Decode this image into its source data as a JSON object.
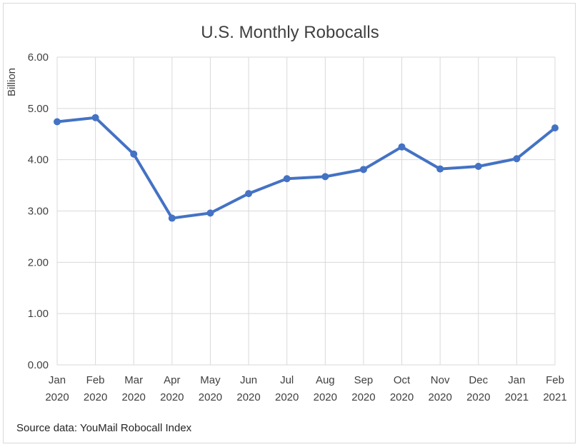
{
  "chart_data": {
    "type": "line",
    "title": "U.S. Monthly Robocalls",
    "ylabel": "Billion",
    "xlabel": "",
    "ylim": [
      0,
      6
    ],
    "yticks": [
      "0.00",
      "1.00",
      "2.00",
      "3.00",
      "4.00",
      "5.00",
      "6.00"
    ],
    "categories": [
      [
        "Jan",
        "2020"
      ],
      [
        "Feb",
        "2020"
      ],
      [
        "Mar",
        "2020"
      ],
      [
        "Apr",
        "2020"
      ],
      [
        "May",
        "2020"
      ],
      [
        "Jun",
        "2020"
      ],
      [
        "Jul",
        "2020"
      ],
      [
        "Aug",
        "2020"
      ],
      [
        "Sep",
        "2020"
      ],
      [
        "Oct",
        "2020"
      ],
      [
        "Nov",
        "2020"
      ],
      [
        "Dec",
        "2020"
      ],
      [
        "Jan",
        "2021"
      ],
      [
        "Feb",
        "2021"
      ]
    ],
    "series": [
      {
        "values": [
          4.74,
          4.82,
          4.11,
          2.86,
          2.96,
          3.34,
          3.63,
          3.67,
          3.81,
          4.25,
          3.82,
          3.87,
          4.02,
          4.62
        ],
        "color": "#4472C4"
      }
    ],
    "grid": true,
    "legend": "none",
    "annotation": "Source data: YouMail Robocall Index"
  }
}
